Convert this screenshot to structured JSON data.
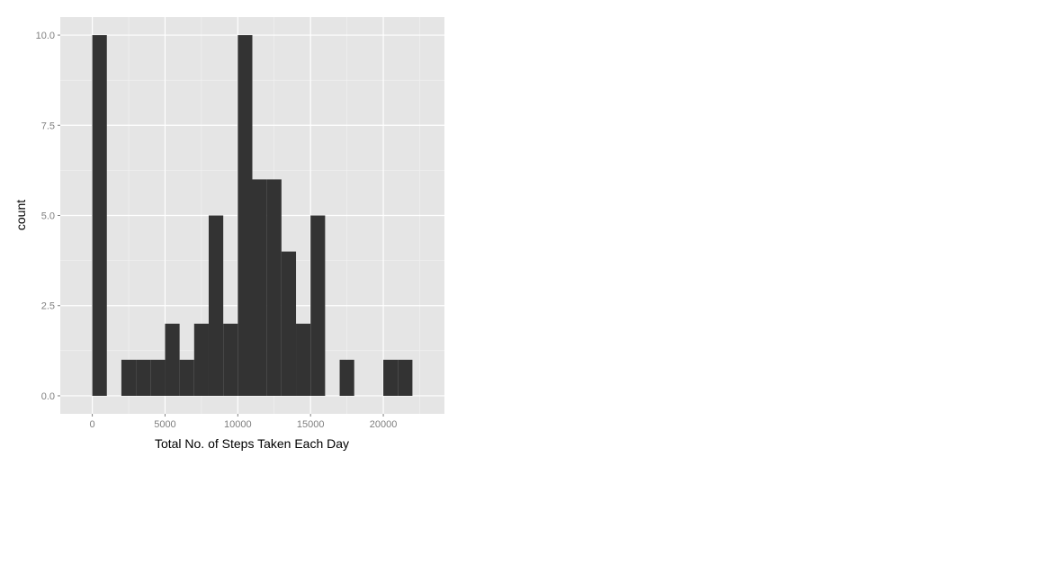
{
  "chart_data": {
    "type": "bar",
    "subtype": "histogram",
    "title": "",
    "xlabel": "Total No. of Steps Taken Each Day",
    "ylabel": "count",
    "bin_width": 1000,
    "bins": [
      {
        "start": 0,
        "end": 1000,
        "count": 10
      },
      {
        "start": 1000,
        "end": 2000,
        "count": 0
      },
      {
        "start": 2000,
        "end": 3000,
        "count": 1
      },
      {
        "start": 3000,
        "end": 4000,
        "count": 1
      },
      {
        "start": 4000,
        "end": 5000,
        "count": 1
      },
      {
        "start": 5000,
        "end": 6000,
        "count": 2
      },
      {
        "start": 6000,
        "end": 7000,
        "count": 1
      },
      {
        "start": 7000,
        "end": 8000,
        "count": 2
      },
      {
        "start": 8000,
        "end": 9000,
        "count": 5
      },
      {
        "start": 9000,
        "end": 10000,
        "count": 2
      },
      {
        "start": 10000,
        "end": 11000,
        "count": 10
      },
      {
        "start": 11000,
        "end": 12000,
        "count": 6
      },
      {
        "start": 12000,
        "end": 13000,
        "count": 6
      },
      {
        "start": 13000,
        "end": 14000,
        "count": 4
      },
      {
        "start": 14000,
        "end": 15000,
        "count": 2
      },
      {
        "start": 15000,
        "end": 16000,
        "count": 5
      },
      {
        "start": 16000,
        "end": 17000,
        "count": 0
      },
      {
        "start": 17000,
        "end": 18000,
        "count": 1
      },
      {
        "start": 18000,
        "end": 19000,
        "count": 0
      },
      {
        "start": 19000,
        "end": 20000,
        "count": 0
      },
      {
        "start": 20000,
        "end": 21000,
        "count": 1
      },
      {
        "start": 21000,
        "end": 22000,
        "count": 1
      }
    ],
    "x_ticks": [
      0,
      5000,
      10000,
      15000,
      20000
    ],
    "x_tick_labels": [
      "0",
      "5000",
      "10000",
      "15000",
      "20000"
    ],
    "y_ticks": [
      0,
      2.5,
      5,
      7.5,
      10
    ],
    "y_tick_labels": [
      "0.0",
      "2.5",
      "5.0",
      "7.5",
      "10.0"
    ],
    "xlim": [
      -2200,
      24200
    ],
    "ylim": [
      -0.5,
      10.5
    ],
    "grid": true,
    "legend": "none",
    "colors": {
      "panel_background": "#e5e5e5",
      "grid_major": "#ffffff",
      "grid_minor": "#f2f2f2",
      "bar_fill": "#333333",
      "tick_text": "#7f7f7f",
      "axis_title_text": "#000000"
    }
  }
}
